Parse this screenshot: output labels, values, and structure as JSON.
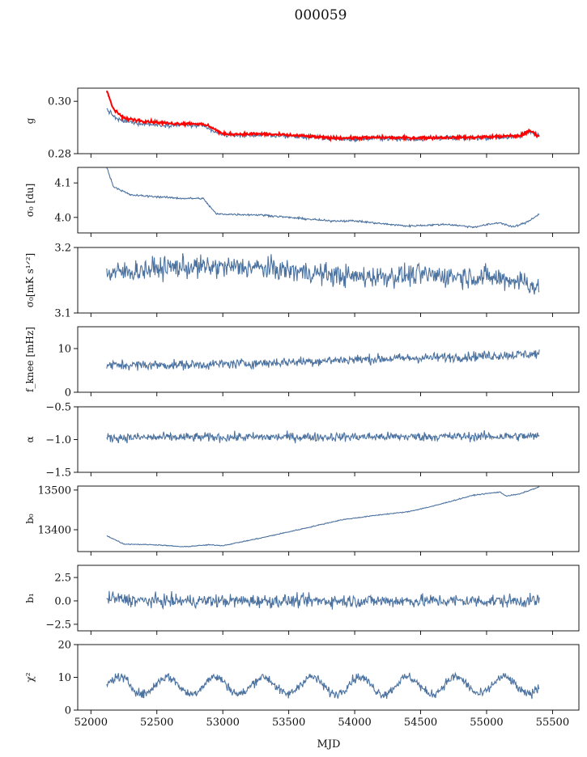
{
  "figure": {
    "title": "000059",
    "xlabel": "MJD"
  },
  "chart_data": {
    "type": "line",
    "x_range": [
      51900,
      55700
    ],
    "x_ticks": [
      52000,
      52500,
      53000,
      53500,
      54000,
      54500,
      55000,
      55500
    ],
    "x_data_range": [
      52120,
      55400
    ],
    "line_color": "#4c72a0",
    "overlay_color": "#ff0000",
    "panels": [
      {
        "id": "g",
        "ylabel": "g",
        "ylim": [
          0.28,
          0.305
        ],
        "yticks": [
          {
            "v": 0.28,
            "label": "0.28"
          },
          {
            "v": 0.3,
            "label": "0.30"
          }
        ],
        "trend": [
          [
            52120,
            0.297
          ],
          [
            52200,
            0.293
          ],
          [
            52300,
            0.292
          ],
          [
            52500,
            0.291
          ],
          [
            52700,
            0.291
          ],
          [
            52850,
            0.2905
          ],
          [
            52950,
            0.288
          ],
          [
            53050,
            0.287
          ],
          [
            53300,
            0.2872
          ],
          [
            53600,
            0.2865
          ],
          [
            53800,
            0.2858
          ],
          [
            54000,
            0.2855
          ],
          [
            54200,
            0.286
          ],
          [
            54400,
            0.2855
          ],
          [
            54700,
            0.286
          ],
          [
            54900,
            0.286
          ],
          [
            55100,
            0.2862
          ],
          [
            55250,
            0.2865
          ],
          [
            55330,
            0.2885
          ],
          [
            55400,
            0.287
          ]
        ],
        "noise": 0.0006,
        "overlay": {
          "name": "",
          "trend": [
            [
              52120,
              0.304
            ],
            [
              52170,
              0.297
            ],
            [
              52250,
              0.2935
            ],
            [
              52400,
              0.2925
            ],
            [
              52600,
              0.2915
            ],
            [
              52800,
              0.2915
            ],
            [
              52900,
              0.2905
            ],
            [
              53000,
              0.2875
            ],
            [
              53300,
              0.2875
            ],
            [
              53600,
              0.2868
            ],
            [
              53800,
              0.286
            ],
            [
              54000,
              0.286
            ],
            [
              54200,
              0.2862
            ],
            [
              54400,
              0.286
            ],
            [
              54700,
              0.2862
            ],
            [
              54900,
              0.2862
            ],
            [
              55100,
              0.2866
            ],
            [
              55250,
              0.2868
            ],
            [
              55330,
              0.2888
            ],
            [
              55400,
              0.2866
            ]
          ],
          "noise": 0.0004
        }
      },
      {
        "id": "sigma0",
        "ylabel": "σ₀ [du]",
        "ylim": [
          3.955,
          4.145
        ],
        "yticks": [
          {
            "v": 4.0,
            "label": "4.0"
          },
          {
            "v": 4.1,
            "label": "4.1"
          }
        ],
        "trend": [
          [
            52120,
            4.145
          ],
          [
            52170,
            4.09
          ],
          [
            52300,
            4.065
          ],
          [
            52500,
            4.06
          ],
          [
            52700,
            4.055
          ],
          [
            52850,
            4.055
          ],
          [
            52950,
            4.01
          ],
          [
            53300,
            4.007
          ],
          [
            53500,
            4.0
          ],
          [
            53800,
            3.99
          ],
          [
            54000,
            3.99
          ],
          [
            54200,
            3.982
          ],
          [
            54400,
            3.975
          ],
          [
            54700,
            3.98
          ],
          [
            54900,
            3.972
          ],
          [
            55100,
            3.985
          ],
          [
            55200,
            3.972
          ],
          [
            55300,
            3.985
          ],
          [
            55400,
            4.01
          ]
        ],
        "noise": 0.002
      },
      {
        "id": "sigma0K",
        "ylabel": "σ₀[mK s¹ᐟ²]",
        "ylim": [
          3.1,
          3.2
        ],
        "yticks": [
          {
            "v": 3.1,
            "label": "3.1"
          },
          {
            "v": 3.2,
            "label": "3.2"
          }
        ],
        "trend": [
          [
            52120,
            3.16
          ],
          [
            52600,
            3.17
          ],
          [
            53200,
            3.17
          ],
          [
            53500,
            3.165
          ],
          [
            54000,
            3.155
          ],
          [
            54500,
            3.158
          ],
          [
            55000,
            3.155
          ],
          [
            55300,
            3.148
          ],
          [
            55400,
            3.135
          ]
        ],
        "noise": 0.012
      },
      {
        "id": "fknee",
        "ylabel": "f_knee [mHz]",
        "ylim": [
          0,
          15
        ],
        "yticks": [
          {
            "v": 0,
            "label": "0"
          },
          {
            "v": 10,
            "label": "10"
          }
        ],
        "trend": [
          [
            52120,
            6.2
          ],
          [
            52800,
            6.3
          ],
          [
            53300,
            6.7
          ],
          [
            54000,
            7.5
          ],
          [
            54700,
            8.0
          ],
          [
            55400,
            8.8
          ]
        ],
        "noise": 0.8
      },
      {
        "id": "alpha",
        "ylabel": "α",
        "ylim": [
          -1.5,
          -0.5
        ],
        "yticks": [
          {
            "v": -1.5,
            "label": "−1.5"
          },
          {
            "v": -1.0,
            "label": "−1.0"
          },
          {
            "v": -0.5,
            "label": "−0.5"
          }
        ],
        "trend": [
          [
            52120,
            -0.97
          ],
          [
            55400,
            -0.95
          ]
        ],
        "noise": 0.05
      },
      {
        "id": "b0",
        "ylabel": "b₀",
        "ylim": [
          13345,
          13510
        ],
        "yticks": [
          {
            "v": 13400,
            "label": "13400"
          },
          {
            "v": 13500,
            "label": "13500"
          }
        ],
        "trend": [
          [
            52120,
            13385
          ],
          [
            52250,
            13364
          ],
          [
            52500,
            13362
          ],
          [
            52700,
            13357
          ],
          [
            52900,
            13362
          ],
          [
            53000,
            13360
          ],
          [
            53300,
            13380
          ],
          [
            53600,
            13402
          ],
          [
            53900,
            13425
          ],
          [
            54200,
            13438
          ],
          [
            54400,
            13445
          ],
          [
            54600,
            13460
          ],
          [
            54900,
            13487
          ],
          [
            55100,
            13495
          ],
          [
            55150,
            13485
          ],
          [
            55250,
            13490
          ],
          [
            55400,
            13508
          ]
        ],
        "noise": 0.8
      },
      {
        "id": "b1",
        "ylabel": "b₁",
        "ylim": [
          -3.2,
          3.8
        ],
        "yticks": [
          {
            "v": -2.5,
            "label": "−2.5"
          },
          {
            "v": 0.0,
            "label": "0.0"
          },
          {
            "v": 2.5,
            "label": "2.5"
          }
        ],
        "trend": [
          [
            52120,
            0.3
          ],
          [
            52400,
            0.0
          ],
          [
            55400,
            0.0
          ]
        ],
        "noise": 0.5
      },
      {
        "id": "chi2",
        "ylabel": "χ²",
        "ylim": [
          0,
          20
        ],
        "yticks": [
          {
            "v": 0,
            "label": "0"
          },
          {
            "v": 10,
            "label": "10"
          },
          {
            "v": 20,
            "label": "20"
          }
        ],
        "trend": [
          [
            52120,
            7.5
          ],
          [
            55400,
            7.5
          ]
        ],
        "noise": 1.0,
        "oscillation": {
          "amplitude": 2.6,
          "period_days": 365
        }
      }
    ]
  }
}
